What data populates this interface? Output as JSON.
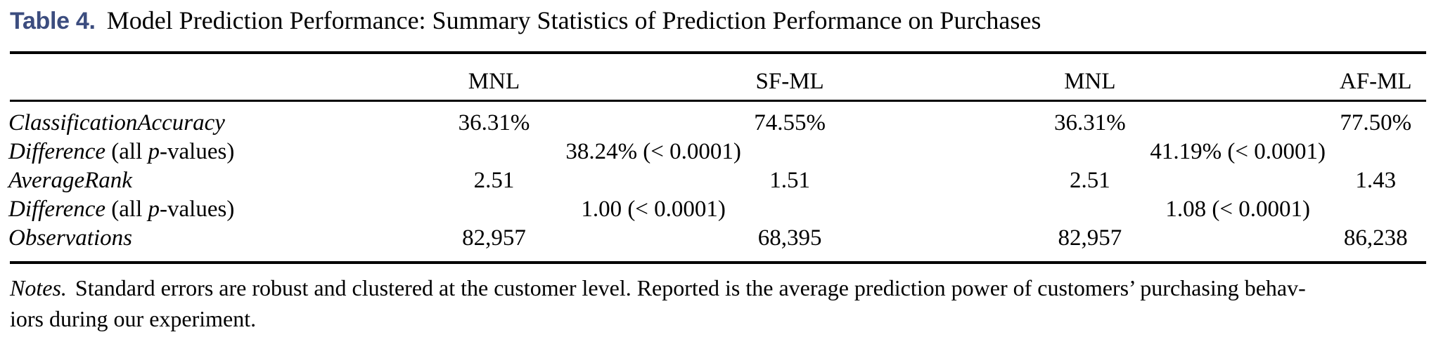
{
  "title": {
    "label": "Table 4.",
    "text": "Model Prediction Performance: Summary Statistics of Prediction Performance on Purchases"
  },
  "colors": {
    "title_label": "#3c4d7f",
    "text": "#000000",
    "rule": "#000000"
  },
  "table": {
    "column_headers": [
      "MNL",
      "SF-ML",
      "MNL",
      "AF-ML"
    ],
    "rows": [
      {
        "label": "ClassificationAccuracy",
        "values": [
          "36.31%",
          "74.55%",
          "36.31%",
          "77.50%"
        ]
      },
      {
        "label": "Difference",
        "label_rest1": " (all ",
        "label_p": "p",
        "label_rest2": "-values)",
        "pair_values": [
          "38.24% (< 0.0001)",
          "41.19% (< 0.0001)"
        ]
      },
      {
        "label": "AverageRank",
        "values": [
          "2.51",
          "1.51",
          "2.51",
          "1.43"
        ]
      },
      {
        "label": "Difference",
        "label_rest1": " (all ",
        "label_p": "p",
        "label_rest2": "-values)",
        "pair_values": [
          "1.00 (< 0.0001)",
          "1.08 (< 0.0001)"
        ]
      },
      {
        "label": "Observations",
        "values": [
          "82,957",
          "68,395",
          "82,957",
          "86,238"
        ]
      }
    ]
  },
  "notes": {
    "label": "Notes.",
    "line1": "Standard errors are robust and clustered at the customer level. Reported is the average prediction power of customers’ purchasing behav-",
    "line2": "iors during our experiment."
  }
}
